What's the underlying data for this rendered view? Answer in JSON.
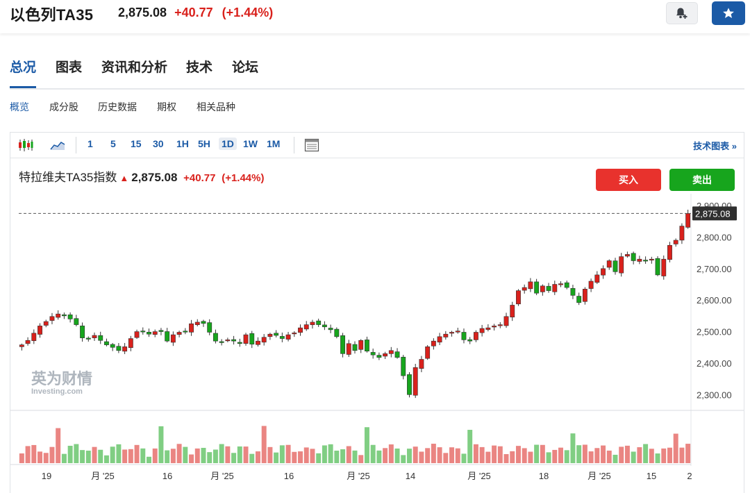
{
  "header": {
    "title": "以色列TA35",
    "price": "2,875.08",
    "change": "+40.77",
    "change_pct": "(+1.44%)"
  },
  "main_tabs": [
    "总况",
    "图表",
    "资讯和分析",
    "技术",
    "论坛"
  ],
  "sub_tabs": [
    "概览",
    "成分股",
    "历史数据",
    "期权",
    "相关品种"
  ],
  "toolbar": {
    "intervals": [
      "1",
      "5",
      "15",
      "30",
      "1H",
      "5H",
      "1D",
      "1W",
      "1M"
    ],
    "active_interval": "1D",
    "tech_chart_label": "技术图表 »"
  },
  "legend": {
    "name": "特拉维夫TA35指数",
    "price": "2,875.08",
    "change": "+40.77",
    "change_pct": "(+1.44%)"
  },
  "trade": {
    "buy_label": "买入",
    "sell_label": "卖出"
  },
  "watermark": {
    "cn": "英为财情",
    "en": "Investing.com"
  },
  "colors": {
    "up": "#d9211c",
    "down": "#17a51d",
    "accent": "#1b5aa6"
  },
  "chart_data": {
    "type": "candlestick",
    "y_ticks": [
      "2,900.00",
      "2,800.00",
      "2,700.00",
      "2,600.00",
      "2,500.00",
      "2,400.00",
      "2,300.00"
    ],
    "ylim": [
      2250,
      2920
    ],
    "last_price": 2875.08,
    "last_price_label": "2,875.08",
    "x_tick_labels": [
      "19",
      "月 '25",
      "16",
      "月 '25",
      "16",
      "月 '25",
      "14",
      "月 '25",
      "18",
      "月 '25",
      "15",
      "2"
    ],
    "closes": [
      2458,
      2472,
      2495,
      2518,
      2532,
      2548,
      2556,
      2550,
      2540,
      2522,
      2480,
      2476,
      2488,
      2472,
      2458,
      2450,
      2440,
      2452,
      2478,
      2500,
      2502,
      2492,
      2500,
      2500,
      2470,
      2490,
      2498,
      2500,
      2525,
      2530,
      2526,
      2498,
      2470,
      2468,
      2474,
      2470,
      2462,
      2490,
      2460,
      2470,
      2482,
      2492,
      2488,
      2478,
      2490,
      2496,
      2512,
      2522,
      2530,
      2522,
      2515,
      2506,
      2484,
      2430,
      2462,
      2440,
      2472,
      2438,
      2426,
      2418,
      2430,
      2440,
      2418,
      2360,
      2300,
      2386,
      2412,
      2452,
      2470,
      2484,
      2492,
      2498,
      2502,
      2474,
      2470,
      2498,
      2510,
      2512,
      2518,
      2522,
      2548,
      2584,
      2630,
      2640,
      2658,
      2622,
      2645,
      2630,
      2650,
      2652,
      2640,
      2615,
      2592,
      2635,
      2660,
      2680,
      2700,
      2725,
      2690,
      2738,
      2745,
      2725,
      2730,
      2724,
      2730,
      2680,
      2730,
      2774,
      2790,
      2835,
      2875
    ],
    "volume_scale": [
      0,
      1
    ]
  }
}
